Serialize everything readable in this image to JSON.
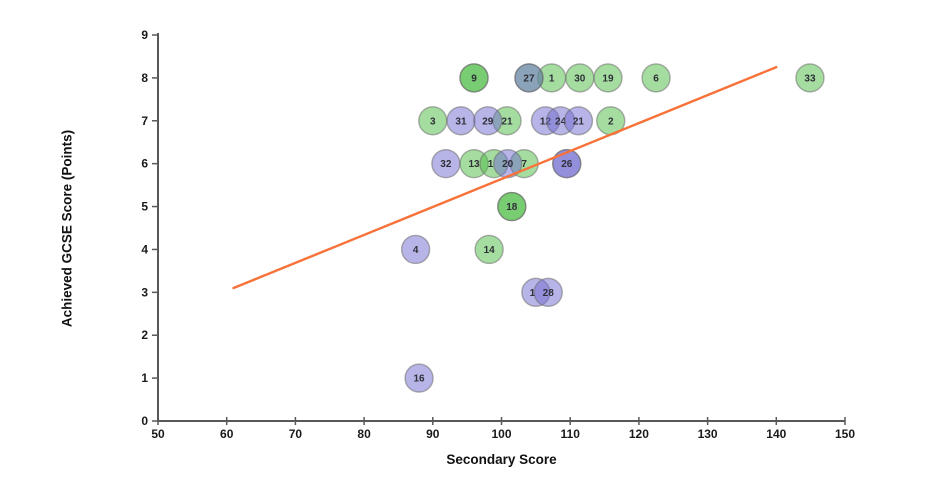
{
  "chart_data": {
    "type": "scatter",
    "title": "",
    "xlabel": "Secondary Score",
    "ylabel": "Achieved GCSE Score (Points)",
    "xlim": [
      50,
      150
    ],
    "ylim": [
      0,
      9
    ],
    "x_ticks": [
      50,
      60,
      70,
      80,
      90,
      100,
      110,
      120,
      130,
      140,
      150
    ],
    "y_ticks": [
      0,
      1,
      2,
      3,
      4,
      5,
      6,
      7,
      8,
      9
    ],
    "grid": false,
    "legend": false,
    "marker_colors": {
      "green": "#4BBB41",
      "purple": "#6F69CF"
    },
    "marker_opacity": 0.5,
    "marker_stroke": "#6e6e6e",
    "axis_color": "#58585a",
    "trendline": {
      "x1": 61,
      "y1": 3.1,
      "x2": 140,
      "y2": 8.25,
      "color": "#F87239"
    },
    "points": [
      {
        "label": "9",
        "x": 96.0,
        "y": 8,
        "layers": [
          "green",
          "green"
        ]
      },
      {
        "label": "1",
        "x": 107.3,
        "y": 8,
        "layers": [
          "green"
        ]
      },
      {
        "label": "27",
        "x": 104.0,
        "y": 8,
        "layers": [
          "green",
          "purple"
        ]
      },
      {
        "label": "30",
        "x": 111.4,
        "y": 8,
        "layers": [
          "green"
        ]
      },
      {
        "label": "19",
        "x": 115.5,
        "y": 8,
        "layers": [
          "green"
        ]
      },
      {
        "label": "6",
        "x": 122.5,
        "y": 8,
        "layers": [
          "green"
        ]
      },
      {
        "label": "33",
        "x": 144.9,
        "y": 8,
        "layers": [
          "green"
        ]
      },
      {
        "label": "3",
        "x": 90.0,
        "y": 7,
        "layers": [
          "green"
        ]
      },
      {
        "label": "31",
        "x": 94.1,
        "y": 7,
        "layers": [
          "purple"
        ]
      },
      {
        "label": "21",
        "x": 100.8,
        "y": 7,
        "layers": [
          "green"
        ]
      },
      {
        "label": "29",
        "x": 98.0,
        "y": 7,
        "layers": [
          "purple"
        ]
      },
      {
        "label": "12",
        "x": 106.4,
        "y": 7,
        "layers": [
          "purple"
        ]
      },
      {
        "label": "24",
        "x": 108.6,
        "y": 7,
        "layers": [
          "purple"
        ]
      },
      {
        "label": "21",
        "x": 111.2,
        "y": 7,
        "layers": [
          "purple"
        ]
      },
      {
        "label": "2",
        "x": 115.9,
        "y": 7,
        "layers": [
          "green"
        ]
      },
      {
        "label": "32",
        "x": 91.9,
        "y": 6,
        "layers": [
          "purple"
        ]
      },
      {
        "label": "13",
        "x": 96.0,
        "y": 6,
        "layers": [
          "green"
        ]
      },
      {
        "label": "1",
        "x": 98.9,
        "y": 6,
        "layers": [
          "green"
        ],
        "label_dx": -0.5
      },
      {
        "label": "7",
        "x": 103.3,
        "y": 6,
        "layers": [
          "green"
        ]
      },
      {
        "label": "20",
        "x": 100.9,
        "y": 6,
        "layers": [
          "purple"
        ]
      },
      {
        "label": "26",
        "x": 109.5,
        "y": 6,
        "layers": [
          "purple",
          "purple"
        ]
      },
      {
        "label": "18",
        "x": 101.5,
        "y": 5,
        "layers": [
          "green",
          "green"
        ]
      },
      {
        "label": "4",
        "x": 87.5,
        "y": 4,
        "layers": [
          "purple"
        ]
      },
      {
        "label": "14",
        "x": 98.2,
        "y": 4,
        "layers": [
          "green"
        ]
      },
      {
        "label": "1",
        "x": 105.0,
        "y": 3,
        "layers": [
          "purple"
        ],
        "label_dx": -0.5
      },
      {
        "label": "28",
        "x": 106.8,
        "y": 3,
        "layers": [
          "purple"
        ]
      },
      {
        "label": "16",
        "x": 88.0,
        "y": 1,
        "layers": [
          "purple"
        ]
      }
    ]
  }
}
